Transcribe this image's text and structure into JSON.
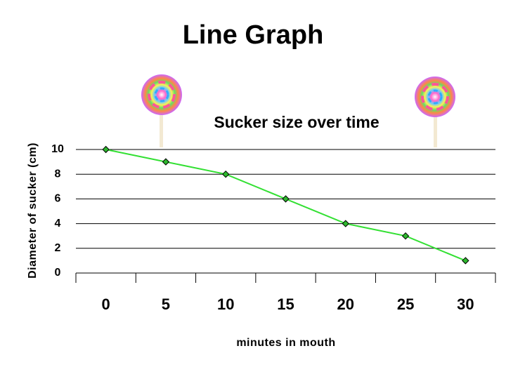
{
  "title": "Line Graph",
  "chart_data": {
    "type": "line",
    "title": "Sucker size over time",
    "x_label": "minutes in mouth",
    "y_label": "Diameter of sucker (cm)",
    "categories": [
      "0",
      "5",
      "10",
      "15",
      "20",
      "25",
      "30"
    ],
    "values": [
      10,
      9,
      8,
      6,
      4,
      3,
      1
    ],
    "color": "#33e033",
    "marker_color": "#2db82d",
    "ylim": [
      0,
      10
    ],
    "yticks": [
      0,
      2,
      4,
      6,
      8,
      10
    ],
    "grid": true
  }
}
